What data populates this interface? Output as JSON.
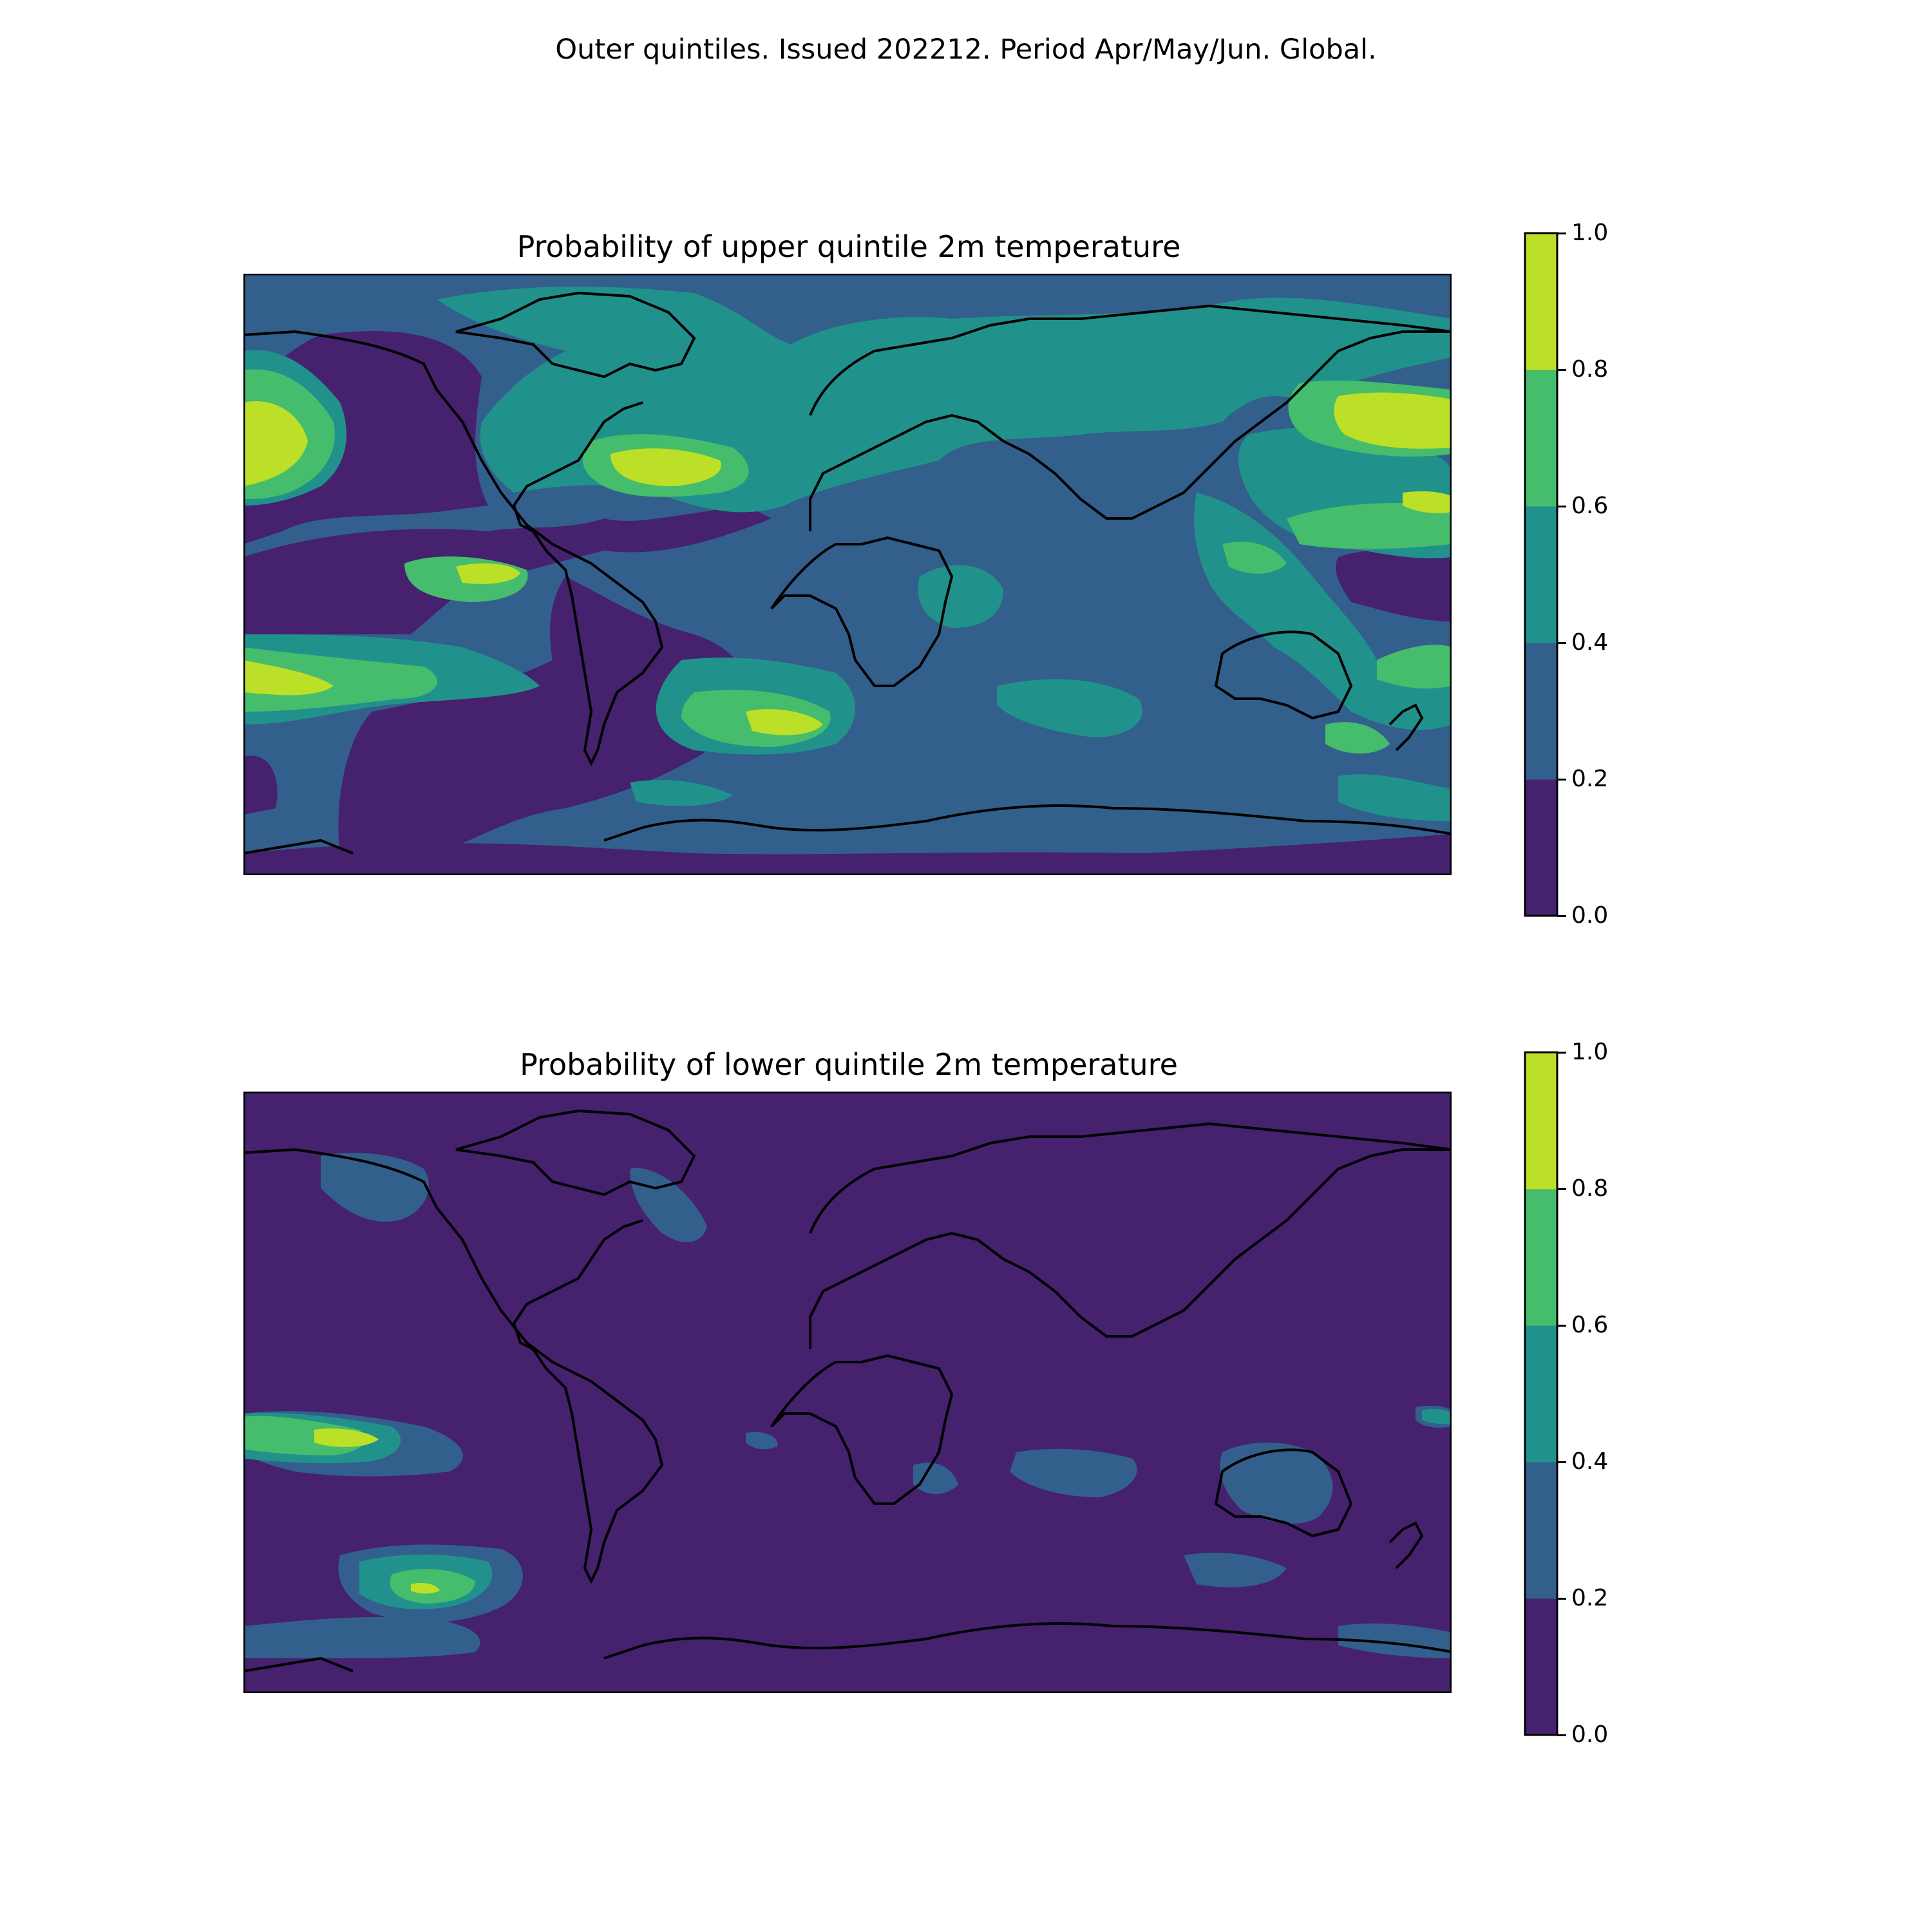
{
  "title": "Outer quintiles. Issued 202212. Period Apr/May/Jun. Global.",
  "panels": [
    {
      "title": "Probability of upper quintile 2m temperature",
      "colorbar": {
        "ticks": [
          "0.0",
          "0.2",
          "0.4",
          "0.6",
          "0.8",
          "1.0"
        ],
        "levels": [
          0.0,
          0.2,
          0.4,
          0.6,
          0.8,
          1.0
        ],
        "colors": [
          "#45216e",
          "#335f8c",
          "#21918c",
          "#45bd6c",
          "#bcdf27"
        ]
      },
      "dominant_level": "0.2-0.4"
    },
    {
      "title": "Probability of lower quintile 2m temperature",
      "colorbar": {
        "ticks": [
          "0.0",
          "0.2",
          "0.4",
          "0.6",
          "0.8",
          "1.0"
        ],
        "levels": [
          0.0,
          0.2,
          0.4,
          0.6,
          0.8,
          1.0
        ],
        "colors": [
          "#45216e",
          "#335f8c",
          "#21918c",
          "#45bd6c",
          "#bcdf27"
        ]
      },
      "dominant_level": "0.0-0.2"
    }
  ],
  "colors": {
    "bin_0_0.2": "#45216e",
    "bin_0.2_0.4": "#335f8c",
    "bin_0.4_0.6": "#21918c",
    "bin_0.6_0.8": "#45bd6c",
    "bin_0.8_1.0": "#bcdf27",
    "coastline": "#000000"
  }
}
